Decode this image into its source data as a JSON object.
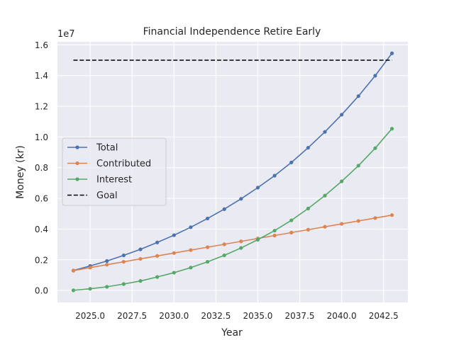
{
  "chart_data": {
    "type": "line",
    "title": "Financial Independence Retire Early",
    "xlabel": "Year",
    "ylabel": "Money (kr)",
    "offset_label": "1e7",
    "xlim": [
      2023.05,
      2043.95
    ],
    "ylim": [
      -780000,
      16200000
    ],
    "x_ticks": [
      2025.0,
      2027.5,
      2030.0,
      2032.5,
      2035.0,
      2037.5,
      2040.0,
      2042.5
    ],
    "x_tick_labels": [
      "2025.0",
      "2027.5",
      "2030.0",
      "2032.5",
      "2035.0",
      "2037.5",
      "2040.0",
      "2042.5"
    ],
    "y_ticks": [
      0,
      2000000,
      4000000,
      6000000,
      8000000,
      10000000,
      12000000,
      14000000,
      16000000
    ],
    "y_tick_labels": [
      "0.0",
      "0.2",
      "0.4",
      "0.6",
      "0.8",
      "1.0",
      "1.2",
      "1.4",
      "1.6"
    ],
    "grid": true,
    "legend_position": "center-left",
    "x": [
      2024,
      2025,
      2026,
      2027,
      2028,
      2029,
      2030,
      2031,
      2032,
      2033,
      2034,
      2035,
      2036,
      2037,
      2038,
      2039,
      2040,
      2041,
      2042,
      2043
    ],
    "series": [
      {
        "name": "Total",
        "color": "#4c72b0",
        "style": "solid",
        "marker": true,
        "values": [
          1300000,
          1600000,
          1920000,
          2290000,
          2680000,
          3130000,
          3600000,
          4120000,
          4690000,
          5300000,
          5970000,
          6700000,
          7480000,
          8340000,
          9300000,
          10330000,
          11450000,
          12660000,
          13990000,
          15450000
        ]
      },
      {
        "name": "Contributed",
        "color": "#dd8452",
        "style": "solid",
        "marker": true,
        "values": [
          1290000,
          1490000,
          1680000,
          1870000,
          2060000,
          2250000,
          2440000,
          2630000,
          2820000,
          3010000,
          3200000,
          3390000,
          3580000,
          3770000,
          3960000,
          4150000,
          4340000,
          4530000,
          4720000,
          4910000
        ]
      },
      {
        "name": "Interest",
        "color": "#55a868",
        "style": "solid",
        "marker": true,
        "values": [
          10000,
          110000,
          240000,
          420000,
          620000,
          880000,
          1160000,
          1490000,
          1870000,
          2290000,
          2770000,
          3310000,
          3900000,
          4570000,
          5340000,
          6180000,
          7110000,
          8130000,
          9270000,
          10540000
        ]
      },
      {
        "name": "Goal",
        "color": "#000000",
        "style": "dashed",
        "marker": false,
        "values": [
          15000000,
          15000000,
          15000000,
          15000000,
          15000000,
          15000000,
          15000000,
          15000000,
          15000000,
          15000000,
          15000000,
          15000000,
          15000000,
          15000000,
          15000000,
          15000000,
          15000000,
          15000000,
          15000000,
          15000000
        ]
      }
    ]
  }
}
